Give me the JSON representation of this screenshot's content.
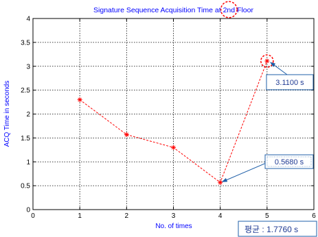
{
  "chart_data": {
    "type": "line",
    "title_pre": "Signature Sequence Acquisition Time at ",
    "title_circled": "2nd",
    "title_post": " Floor",
    "xlabel": "No. of times",
    "ylabel": "ACQ Time in seconds",
    "xlim": [
      0,
      6
    ],
    "ylim": [
      0,
      4
    ],
    "xticks": [
      "0",
      "1",
      "2",
      "3",
      "4",
      "5",
      "6"
    ],
    "yticks": [
      "0",
      "0.5",
      "1",
      "1.5",
      "2",
      "2.5",
      "3",
      "3.5",
      "4"
    ],
    "grid": true,
    "series": [
      {
        "x": [
          1,
          2,
          3,
          4,
          5
        ],
        "y": [
          2.3,
          1.57,
          1.3,
          0.568,
          3.11
        ],
        "color": "#ff0000",
        "line_style": "dashed",
        "marker": "*"
      }
    ],
    "annotations": [
      {
        "text": "3.1100 s",
        "x": 5,
        "y": 3.11
      },
      {
        "text": "0.5680 s",
        "x": 4,
        "y": 0.568
      }
    ],
    "average_label": "평균 : 1.7760  s",
    "colors": {
      "line": "#ff0000",
      "title": "#0000ff",
      "callout_border": "#1f5fa8",
      "callout_text": "#1f3a93"
    }
  }
}
